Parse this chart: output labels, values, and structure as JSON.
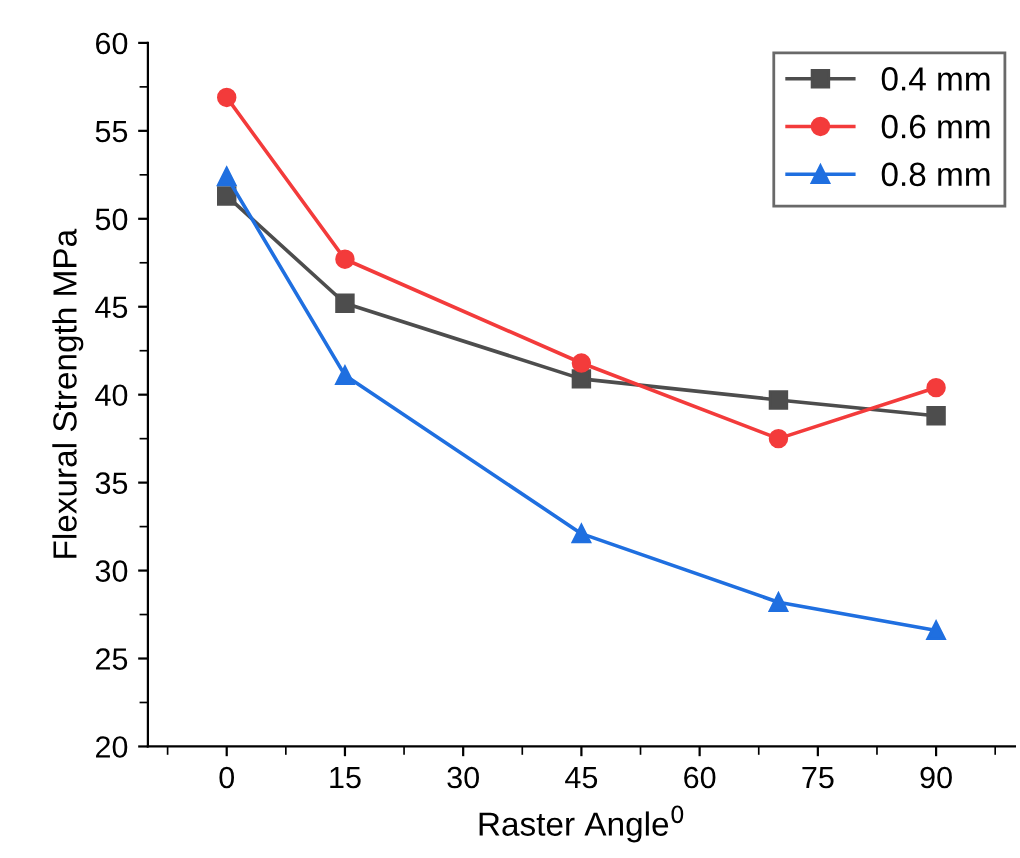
{
  "chart_data": {
    "type": "line",
    "xlabel": "Raster Angle$^{0}$",
    "ylabel": "Flexural Strength MPa",
    "x": [
      0,
      15,
      45,
      70,
      90
    ],
    "series": [
      {
        "name": "0.4 mm",
        "color": "#4d4d4d",
        "marker": "square",
        "values": [
          51.3,
          45.2,
          40.9,
          39.7,
          38.8
        ]
      },
      {
        "name": "0.6 mm",
        "color": "#f33b3b",
        "marker": "circle",
        "values": [
          56.9,
          47.7,
          41.8,
          37.5,
          40.4
        ]
      },
      {
        "name": "0.8 mm",
        "color": "#1f6fe0",
        "marker": "triangle",
        "values": [
          52.4,
          41.1,
          32.1,
          28.2,
          26.6
        ]
      }
    ],
    "xlim": [
      -10,
      100
    ],
    "xticks": [
      0,
      15,
      30,
      45,
      60,
      75,
      90
    ],
    "ylim": [
      20,
      60
    ],
    "yticks": [
      20,
      25,
      30,
      35,
      40,
      45,
      50,
      55,
      60
    ],
    "grid": false,
    "legend": "top right",
    "line_style": "solid"
  }
}
